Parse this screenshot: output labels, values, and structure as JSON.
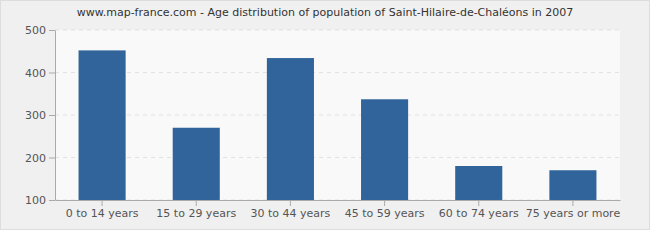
{
  "chart_data": {
    "type": "bar",
    "title": "www.map-france.com - Age distribution of population of Saint-Hilaire-de-Chaléons in 2007",
    "categories": [
      "0 to 14 years",
      "15 to 29 years",
      "30 to 44 years",
      "45 to 59 years",
      "60 to 74 years",
      "75 years or more"
    ],
    "values": [
      452,
      270,
      434,
      337,
      180,
      170
    ],
    "color": "#31649a",
    "ylim": [
      100,
      500
    ],
    "yticks": [
      100,
      200,
      300,
      400,
      500
    ],
    "grid": true
  }
}
